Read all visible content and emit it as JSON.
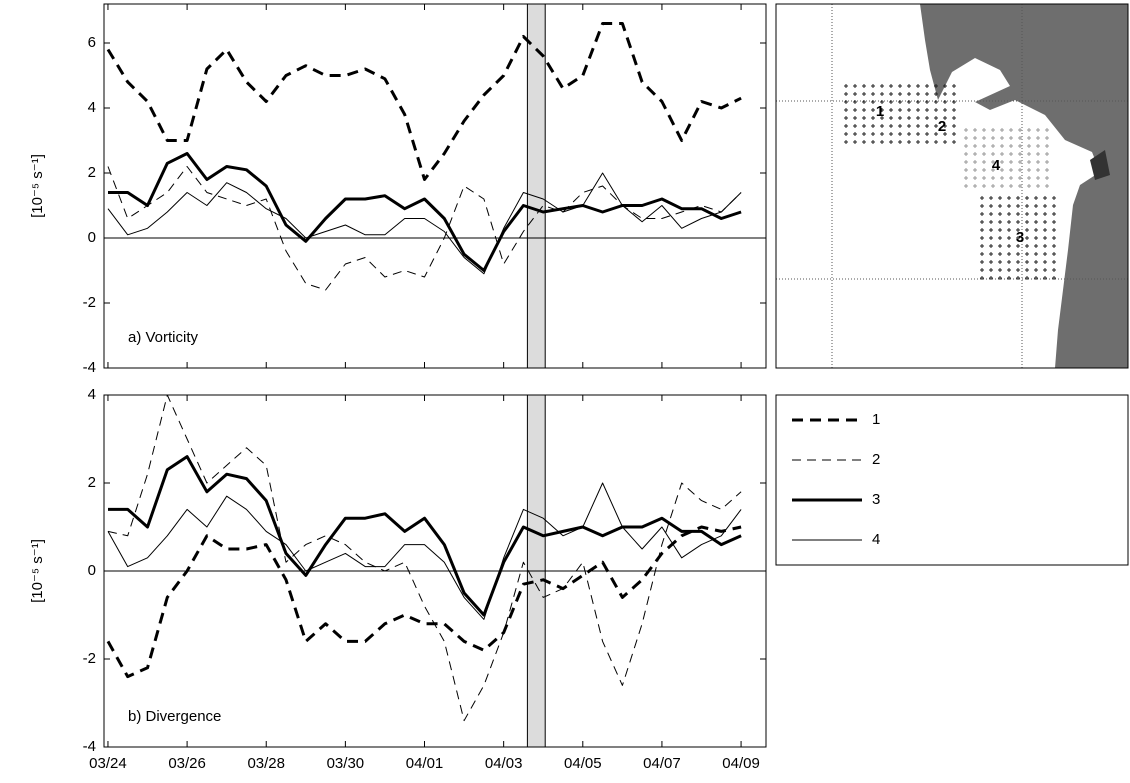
{
  "chart_data": [
    {
      "type": "line",
      "annotation": "a) Vorticity",
      "y_label": "[10⁻⁵ s⁻¹]",
      "x": [
        0,
        0.5,
        1,
        1.5,
        2,
        2.5,
        3,
        3.5,
        4,
        4.5,
        5,
        5.5,
        6,
        6.5,
        7,
        7.5,
        8,
        8.5,
        9,
        9.5,
        10,
        10.5,
        11,
        11.5,
        12,
        12.5,
        13,
        13.5,
        14,
        14.5,
        15,
        15.5,
        16
      ],
      "xlim": [
        -0.1,
        16.63
      ],
      "ylim": [
        -4,
        7.2
      ],
      "yticks": [
        -4,
        -2,
        0,
        2,
        4,
        6
      ],
      "zero_line": true,
      "highlight_xlim": [
        10.6,
        11.05
      ],
      "legend": true,
      "series": [
        {
          "name": "1",
          "color": "#000000",
          "line_style": "dashed",
          "line_width": 3,
          "values": [
            5.8,
            4.8,
            4.2,
            3.0,
            3.0,
            5.2,
            5.8,
            4.8,
            4.2,
            5.0,
            5.3,
            5.0,
            5.0,
            5.2,
            4.9,
            3.8,
            1.8,
            2.6,
            3.6,
            4.4,
            5.0,
            6.2,
            5.6,
            4.6,
            5.0,
            6.6,
            6.6,
            4.8,
            4.2,
            3.0,
            4.2,
            4.0,
            4.3
          ]
        },
        {
          "name": "2",
          "color": "#000000",
          "line_style": "dashed",
          "line_width": 1,
          "values": [
            2.2,
            0.6,
            1.0,
            1.4,
            2.2,
            1.4,
            1.2,
            1.0,
            1.2,
            -0.4,
            -1.4,
            -1.6,
            -0.8,
            -0.6,
            -1.2,
            -1.0,
            -1.2,
            0.0,
            1.6,
            1.2,
            -0.8,
            0.2,
            1.0,
            0.8,
            1.4,
            1.6,
            1.0,
            0.6,
            0.6,
            0.8,
            1.0,
            0.8,
            1.4
          ]
        },
        {
          "name": "3",
          "color": "#000000",
          "line_style": "solid",
          "line_width": 3,
          "values": [
            1.4,
            1.4,
            1.0,
            2.3,
            2.6,
            1.8,
            2.2,
            2.1,
            1.6,
            0.4,
            -0.1,
            0.6,
            1.2,
            1.2,
            1.3,
            0.9,
            1.2,
            0.6,
            -0.5,
            -1.0,
            0.2,
            1.0,
            0.8,
            0.9,
            1.0,
            0.8,
            1.0,
            1.0,
            1.2,
            0.9,
            0.9,
            0.6,
            0.8
          ]
        },
        {
          "name": "4",
          "color": "#000000",
          "line_style": "solid",
          "line_width": 1,
          "values": [
            0.9,
            0.1,
            0.3,
            0.8,
            1.4,
            1.0,
            1.7,
            1.4,
            0.9,
            0.6,
            0.0,
            0.2,
            0.4,
            0.1,
            0.1,
            0.6,
            0.6,
            0.2,
            -0.6,
            -1.1,
            0.3,
            1.4,
            1.2,
            0.8,
            1.0,
            2.0,
            1.0,
            0.5,
            1.0,
            0.3,
            0.6,
            0.8,
            1.4
          ]
        }
      ]
    },
    {
      "type": "line",
      "annotation": "b) Divergence",
      "y_label": "[10⁻⁵ s⁻¹]",
      "x": [
        0,
        0.5,
        1,
        1.5,
        2,
        2.5,
        3,
        3.5,
        4,
        4.5,
        5,
        5.5,
        6,
        6.5,
        7,
        7.5,
        8,
        8.5,
        9,
        9.5,
        10,
        10.5,
        11,
        11.5,
        12,
        12.5,
        13,
        13.5,
        14,
        14.5,
        15,
        15.5,
        16
      ],
      "xlim": [
        -0.1,
        16.63
      ],
      "ylim": [
        -4,
        4
      ],
      "yticks": [
        -4,
        -2,
        0,
        2,
        4
      ],
      "xticks": [
        {
          "value": 0,
          "label": "03/24"
        },
        {
          "value": 2,
          "label": "03/26"
        },
        {
          "value": 4,
          "label": "03/28"
        },
        {
          "value": 6,
          "label": "03/30"
        },
        {
          "value": 8,
          "label": "04/01"
        },
        {
          "value": 10,
          "label": "04/03"
        },
        {
          "value": 12,
          "label": "04/05"
        },
        {
          "value": 14,
          "label": "04/07"
        },
        {
          "value": 16,
          "label": "04/09"
        }
      ],
      "zero_line": true,
      "highlight_xlim": [
        10.6,
        11.05
      ],
      "legend": false,
      "series": [
        {
          "name": "1",
          "color": "#000000",
          "line_style": "dashed",
          "line_width": 3,
          "values": [
            -1.6,
            -2.4,
            -2.2,
            -0.6,
            0.0,
            0.8,
            0.5,
            0.5,
            0.6,
            -0.2,
            -1.6,
            -1.2,
            -1.6,
            -1.6,
            -1.2,
            -1.0,
            -1.2,
            -1.2,
            -1.6,
            -1.8,
            -1.4,
            -0.3,
            -0.2,
            -0.4,
            -0.1,
            0.2,
            -0.6,
            -0.2,
            0.4,
            0.8,
            1.0,
            0.9,
            1.0
          ]
        },
        {
          "name": "2",
          "color": "#000000",
          "line_style": "dashed",
          "line_width": 1,
          "values": [
            0.9,
            0.8,
            2.2,
            4.0,
            3.0,
            2.0,
            2.4,
            2.8,
            2.4,
            0.2,
            0.6,
            0.8,
            0.6,
            0.2,
            0.0,
            0.2,
            -0.8,
            -1.6,
            -3.4,
            -2.6,
            -1.4,
            0.2,
            -0.6,
            -0.4,
            0.2,
            -1.6,
            -2.6,
            -1.2,
            0.6,
            2.0,
            1.6,
            1.4,
            1.8
          ]
        },
        {
          "name": "3",
          "color": "#000000",
          "line_style": "solid",
          "line_width": 3,
          "values": [
            1.4,
            1.4,
            1.0,
            2.3,
            2.6,
            1.8,
            2.2,
            2.1,
            1.6,
            0.4,
            -0.1,
            0.6,
            1.2,
            1.2,
            1.3,
            0.9,
            1.2,
            0.6,
            -0.5,
            -1.0,
            0.2,
            1.0,
            0.8,
            0.9,
            1.0,
            0.8,
            1.0,
            1.0,
            1.2,
            0.9,
            0.9,
            0.6,
            0.8
          ]
        },
        {
          "name": "4",
          "color": "#000000",
          "line_style": "solid",
          "line_width": 1,
          "values": [
            0.9,
            0.1,
            0.3,
            0.8,
            1.4,
            1.0,
            1.7,
            1.4,
            0.9,
            0.6,
            0.0,
            0.2,
            0.4,
            0.1,
            0.1,
            0.6,
            0.6,
            0.2,
            -0.6,
            -1.1,
            0.3,
            1.4,
            1.2,
            0.8,
            1.0,
            2.0,
            1.0,
            0.5,
            1.0,
            0.3,
            0.6,
            0.8,
            1.4
          ]
        }
      ]
    }
  ],
  "map": {
    "region_labels": [
      "1",
      "2",
      "3",
      "4"
    ]
  }
}
